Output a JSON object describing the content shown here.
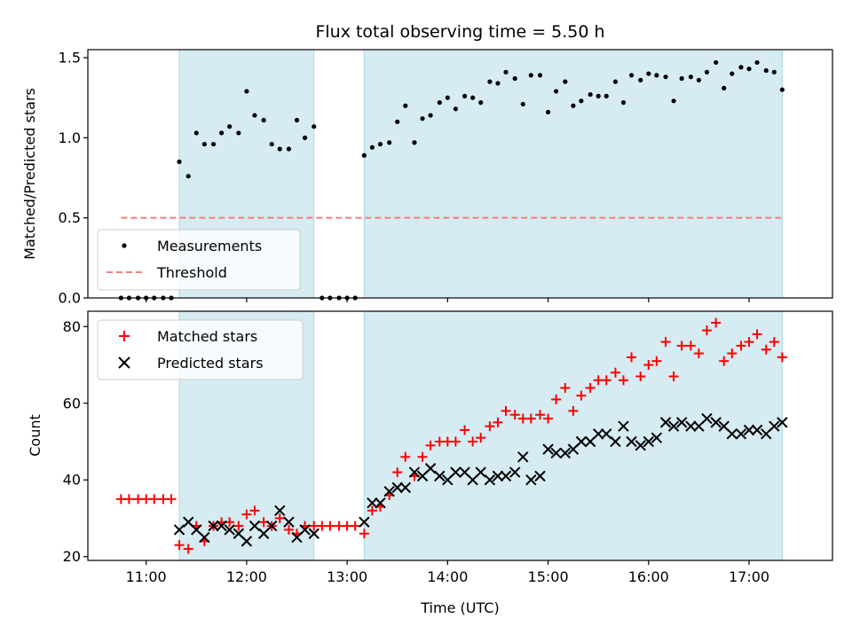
{
  "chart_data": [
    {
      "type": "scatter",
      "panel": "top",
      "title": "Flux total observing time = 5.50 h",
      "ylabel": "Matched/Predicted stars",
      "xlabel": "",
      "ylim": [
        0,
        1.55
      ],
      "yticks": [
        "0.0",
        "0.5",
        "1.0",
        "1.5"
      ],
      "ytick_values": [
        0,
        0.5,
        1.0,
        1.5
      ],
      "shaded_intervals_hours": [
        [
          11.33,
          12.67
        ],
        [
          13.17,
          17.33
        ]
      ],
      "legend": {
        "placement": "lower-left",
        "entries": [
          "Measurements",
          "Threshold"
        ]
      },
      "threshold": {
        "name": "Threshold",
        "y": 0.5,
        "x_range": [
          10.75,
          17.33
        ],
        "color": "#f08080"
      },
      "series": [
        {
          "name": "Measurements",
          "marker": "dot",
          "color": "#000000",
          "x": [
            10.75,
            10.83,
            10.92,
            11.0,
            11.08,
            11.17,
            11.25,
            11.33,
            11.42,
            11.5,
            11.58,
            11.67,
            11.75,
            11.83,
            11.92,
            12.0,
            12.08,
            12.17,
            12.25,
            12.33,
            12.42,
            12.5,
            12.58,
            12.67,
            12.75,
            12.83,
            12.92,
            13.0,
            13.08,
            13.17,
            13.25,
            13.33,
            13.42,
            13.5,
            13.58,
            13.67,
            13.75,
            13.83,
            13.92,
            14.0,
            14.08,
            14.17,
            14.25,
            14.33,
            14.42,
            14.5,
            14.58,
            14.67,
            14.75,
            14.83,
            14.92,
            15.0,
            15.08,
            15.17,
            15.25,
            15.33,
            15.42,
            15.5,
            15.58,
            15.67,
            15.75,
            15.83,
            15.92,
            16.0,
            16.08,
            16.17,
            16.25,
            16.33,
            16.42,
            16.5,
            16.58,
            16.67,
            16.75,
            16.83,
            16.92,
            17.0,
            17.08,
            17.17,
            17.25,
            17.33
          ],
          "y": [
            0,
            0,
            0,
            0,
            0,
            0,
            0,
            0.85,
            0.76,
            1.03,
            0.96,
            0.96,
            1.03,
            1.07,
            1.03,
            1.29,
            1.14,
            1.11,
            0.96,
            0.93,
            0.93,
            1.11,
            1.0,
            1.07,
            0,
            0,
            0,
            0,
            0,
            0.89,
            0.94,
            0.96,
            0.97,
            1.1,
            1.2,
            0.97,
            1.12,
            1.14,
            1.22,
            1.25,
            1.18,
            1.26,
            1.25,
            1.22,
            1.35,
            1.34,
            1.41,
            1.37,
            1.21,
            1.39,
            1.39,
            1.16,
            1.29,
            1.35,
            1.2,
            1.23,
            1.27,
            1.26,
            1.26,
            1.35,
            1.22,
            1.39,
            1.36,
            1.4,
            1.39,
            1.38,
            1.23,
            1.37,
            1.38,
            1.36,
            1.41,
            1.47,
            1.31,
            1.4,
            1.44,
            1.43,
            1.47,
            1.42,
            1.41,
            1.3
          ]
        }
      ]
    },
    {
      "type": "scatter",
      "panel": "bottom",
      "title": "",
      "xlabel": "Time (UTC)",
      "ylabel": "Count",
      "ylim": [
        19,
        84
      ],
      "yticks": [
        "20",
        "40",
        "60",
        "80"
      ],
      "ytick_values": [
        20,
        40,
        60,
        80
      ],
      "xlim_hours": [
        10.42,
        17.83
      ],
      "xticks": [
        "11:00",
        "12:00",
        "13:00",
        "14:00",
        "15:00",
        "16:00",
        "17:00"
      ],
      "xtick_values_hours": [
        11,
        12,
        13,
        14,
        15,
        16,
        17
      ],
      "shaded_intervals_hours": [
        [
          11.33,
          12.67
        ],
        [
          13.17,
          17.33
        ]
      ],
      "legend": {
        "placement": "upper-left",
        "entries": [
          "Matched stars",
          "Predicted stars"
        ]
      },
      "series": [
        {
          "name": "Matched stars",
          "marker": "plus",
          "color": "#ff0000",
          "x": [
            10.75,
            10.83,
            10.92,
            11.0,
            11.08,
            11.17,
            11.25,
            11.33,
            11.42,
            11.5,
            11.58,
            11.67,
            11.75,
            11.83,
            11.92,
            12.0,
            12.08,
            12.17,
            12.25,
            12.33,
            12.42,
            12.5,
            12.58,
            12.67,
            12.75,
            12.83,
            12.92,
            13.0,
            13.08,
            13.17,
            13.25,
            13.33,
            13.42,
            13.5,
            13.58,
            13.67,
            13.75,
            13.83,
            13.92,
            14.0,
            14.08,
            14.17,
            14.25,
            14.33,
            14.42,
            14.5,
            14.58,
            14.67,
            14.75,
            14.83,
            14.92,
            15.0,
            15.08,
            15.17,
            15.25,
            15.33,
            15.42,
            15.5,
            15.58,
            15.67,
            15.75,
            15.83,
            15.92,
            16.0,
            16.08,
            16.17,
            16.25,
            16.33,
            16.42,
            16.5,
            16.58,
            16.67,
            16.75,
            16.83,
            16.92,
            17.0,
            17.08,
            17.17,
            17.25,
            17.33
          ],
          "y": [
            35,
            35,
            35,
            35,
            35,
            35,
            35,
            23,
            22,
            28,
            24,
            28,
            29,
            29,
            28,
            31,
            32,
            29,
            28,
            30,
            27,
            26,
            28,
            28,
            28,
            28,
            28,
            28,
            28,
            26,
            32,
            33,
            36,
            42,
            46,
            41,
            46,
            49,
            50,
            50,
            50,
            53,
            50,
            51,
            54,
            55,
            58,
            57,
            56,
            56,
            57,
            56,
            61,
            64,
            58,
            62,
            64,
            66,
            66,
            68,
            66,
            72,
            67,
            70,
            71,
            76,
            67,
            75,
            75,
            73,
            79,
            81,
            71,
            73,
            75,
            76,
            78,
            74,
            76,
            72
          ]
        },
        {
          "name": "Predicted stars",
          "marker": "x",
          "color": "#000000",
          "x": [
            11.33,
            11.42,
            11.5,
            11.58,
            11.67,
            11.75,
            11.83,
            11.92,
            12.0,
            12.08,
            12.17,
            12.25,
            12.33,
            12.42,
            12.5,
            12.58,
            12.67,
            13.17,
            13.25,
            13.33,
            13.42,
            13.5,
            13.58,
            13.67,
            13.75,
            13.83,
            13.92,
            14.0,
            14.08,
            14.17,
            14.25,
            14.33,
            14.42,
            14.5,
            14.58,
            14.67,
            14.75,
            14.83,
            14.92,
            15.0,
            15.08,
            15.17,
            15.25,
            15.33,
            15.42,
            15.5,
            15.58,
            15.67,
            15.75,
            15.83,
            15.92,
            16.0,
            16.08,
            16.17,
            16.25,
            16.33,
            16.42,
            16.5,
            16.58,
            16.67,
            16.75,
            16.83,
            16.92,
            17.0,
            17.08,
            17.17,
            17.25,
            17.33
          ],
          "y": [
            27,
            29,
            27,
            25,
            28,
            28,
            27,
            26,
            24,
            28,
            26,
            28,
            32,
            29,
            25,
            27,
            26,
            29,
            34,
            34,
            37,
            38,
            38,
            42,
            41,
            43,
            41,
            40,
            42,
            42,
            40,
            42,
            40,
            41,
            41,
            42,
            46,
            40,
            41,
            48,
            47,
            47,
            48,
            50,
            50,
            52,
            52,
            50,
            54,
            50,
            49,
            50,
            51,
            55,
            54,
            55,
            54,
            54,
            56,
            55,
            54,
            52,
            52,
            53,
            53,
            52,
            54,
            55
          ]
        }
      ]
    }
  ]
}
